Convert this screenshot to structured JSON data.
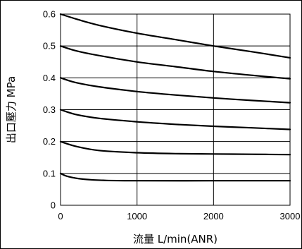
{
  "chart_data": {
    "type": "line",
    "xlabel": "流量 L/min(ANR)",
    "ylabel": "出口壓力 MPa",
    "xlim": [
      0,
      3000
    ],
    "ylim": [
      0,
      0.6
    ],
    "x_ticks": [
      "0",
      "1000",
      "2000",
      "3000"
    ],
    "y_ticks": [
      "0",
      "0.1",
      "0.2",
      "0.3",
      "0.4",
      "0.5",
      "0.6"
    ],
    "grid": true,
    "series": [
      {
        "x": [
          0,
          100,
          300,
          600,
          1000,
          2000,
          3000
        ],
        "values": [
          0.1,
          0.09,
          0.082,
          0.078,
          0.077,
          0.077,
          0.077
        ]
      },
      {
        "x": [
          0,
          200,
          500,
          1000,
          1500,
          2000,
          2500,
          3000
        ],
        "values": [
          0.2,
          0.185,
          0.172,
          0.165,
          0.162,
          0.161,
          0.16,
          0.159
        ]
      },
      {
        "x": [
          0,
          200,
          500,
          1000,
          1500,
          2000,
          2500,
          3000
        ],
        "values": [
          0.3,
          0.285,
          0.273,
          0.262,
          0.254,
          0.248,
          0.243,
          0.238
        ]
      },
      {
        "x": [
          0,
          200,
          500,
          1000,
          1500,
          2000,
          2500,
          3000
        ],
        "values": [
          0.4,
          0.385,
          0.372,
          0.357,
          0.346,
          0.337,
          0.329,
          0.322
        ]
      },
      {
        "x": [
          0,
          200,
          500,
          1000,
          1500,
          2000,
          2500,
          3000
        ],
        "values": [
          0.5,
          0.485,
          0.47,
          0.45,
          0.435,
          0.42,
          0.408,
          0.397
        ]
      },
      {
        "x": [
          0,
          200,
          500,
          1000,
          1500,
          2000,
          2500,
          3000
        ],
        "values": [
          0.6,
          0.585,
          0.565,
          0.54,
          0.52,
          0.5,
          0.482,
          0.463
        ]
      }
    ]
  }
}
